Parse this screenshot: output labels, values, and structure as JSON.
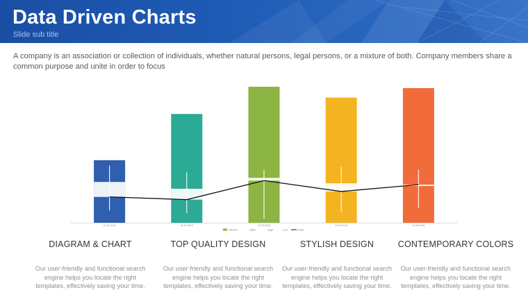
{
  "header": {
    "title": "Data Driven Charts",
    "subtitle": "Slide sub title"
  },
  "intro_text": "A company is an association or collection of individuals, whether natural persons, legal persons, or a mixture of both. Company members share a common purpose and unite in order to focus",
  "columns": [
    {
      "title": "DIAGRAM & CHART",
      "description": "Our user-friendly and functional search engine helps you locate the right templates, effectively saving your time."
    },
    {
      "title": "TOP QUALITY DESIGN",
      "description": "Our user-friendly and functional search engine helps you locate the right templates, effectively saving your time."
    },
    {
      "title": "STYLISH DESIGN",
      "description": "Our user-friendly and functional search engine helps you locate the right templates, effectively saving your time."
    },
    {
      "title": "CONTEMPORARY COLORS",
      "description": "Our user-friendly and functional search engine helps you locate the right templates, effectively saving your time."
    }
  ],
  "chart_data": {
    "type": "bar",
    "subtype": "stock volume-open-high-low-close",
    "categories": [
      "01.01.2016",
      "01.02.2016",
      "01.03.2016",
      "01.04.2016",
      "01.05.2016"
    ],
    "ylim": [
      0,
      100
    ],
    "grid": false,
    "legend": {
      "position": "bottom",
      "entries": [
        "Volume",
        "Open",
        "High",
        "Low",
        "Close"
      ]
    },
    "series": [
      {
        "name": "Volume",
        "values": [
          46,
          80,
          100,
          92,
          99
        ]
      },
      {
        "name": "Open",
        "values": [
          30,
          25,
          33,
          29,
          27
        ]
      },
      {
        "name": "High",
        "values": [
          42,
          37,
          39,
          41,
          39
        ]
      },
      {
        "name": "Low",
        "values": [
          9,
          7,
          3,
          8,
          11
        ]
      },
      {
        "name": "Close",
        "values": [
          19,
          17,
          31,
          23,
          28
        ]
      }
    ],
    "bar_colors": [
      "#2f5fae",
      "#2bab96",
      "#8db543",
      "#f4b321",
      "#f26b3a"
    ],
    "close_line_color": "#111111",
    "candle_color": "#ffffff"
  }
}
